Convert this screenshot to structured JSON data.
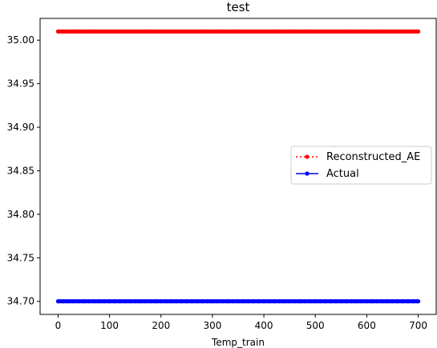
{
  "chart_data": {
    "type": "line",
    "title": "test",
    "xlabel": "Temp_train",
    "ylabel": "",
    "xlim": [
      -35,
      735
    ],
    "ylim": [
      34.685,
      35.025
    ],
    "xticks": [
      0,
      100,
      200,
      300,
      400,
      500,
      600,
      700
    ],
    "xtick_labels": [
      "0",
      "100",
      "200",
      "300",
      "400",
      "500",
      "600",
      "700"
    ],
    "yticks": [
      34.7,
      34.75,
      34.8,
      34.85,
      34.9,
      34.95,
      35.0
    ],
    "ytick_labels": [
      "34.70",
      "34.75",
      "34.80",
      "34.85",
      "34.90",
      "34.95",
      "35.00"
    ],
    "grid": false,
    "legend_position": "center-right",
    "x_range": [
      0,
      700
    ],
    "series": [
      {
        "name": "Reconstructed_AE",
        "color": "#ff0000",
        "linestyle": "dotted",
        "marker": "point",
        "constant_value": 35.01
      },
      {
        "name": "Actual",
        "color": "#0000ff",
        "linestyle": "solid",
        "marker": "point",
        "constant_value": 34.7
      }
    ]
  }
}
